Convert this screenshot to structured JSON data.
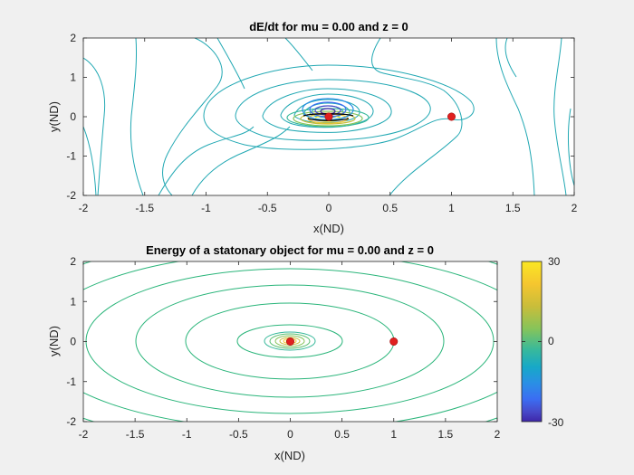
{
  "chart_data": [
    {
      "type": "contour",
      "title": "dE/dt for mu = 0.00 and z = 0",
      "xlabel": "x(ND)",
      "ylabel": "y(ND)",
      "xlim": [
        -2,
        2
      ],
      "ylim": [
        -2,
        2
      ],
      "x_ticks": [
        "-2",
        "-1.5",
        "-1",
        "-0.5",
        "0",
        "0.5",
        "1",
        "1.5",
        "2"
      ],
      "y_ticks": [
        "-2",
        "-1",
        "0",
        "1",
        "2"
      ],
      "markers": [
        {
          "x": 0,
          "y": 0,
          "color": "#e02020"
        },
        {
          "x": 1,
          "y": 0,
          "color": "#e02020"
        }
      ],
      "line_color": "#21a8b3"
    },
    {
      "type": "contour",
      "title": "Energy of a statonary object for mu = 0.00 and z = 0",
      "xlabel": "x(ND)",
      "ylabel": "y(ND)",
      "xlim": [
        -2,
        2
      ],
      "ylim": [
        -2,
        2
      ],
      "x_ticks": [
        "-2",
        "-1.5",
        "-1",
        "-0.5",
        "0",
        "0.5",
        "1",
        "1.5",
        "2"
      ],
      "y_ticks": [
        "-2",
        "-1",
        "0",
        "1",
        "2"
      ],
      "markers": [
        {
          "x": 0,
          "y": 0,
          "color": "#e02020"
        },
        {
          "x": 1,
          "y": 0,
          "color": "#e02020"
        }
      ],
      "line_color": "#2ab57a"
    }
  ],
  "colorbar": {
    "min": -30,
    "max": 30,
    "tick_labels": [
      "30",
      "0",
      "-30"
    ],
    "colors": [
      "#fae723",
      "#f5c62f",
      "#c9bd3a",
      "#86c45a",
      "#38b99b",
      "#17a8c8",
      "#2a8fe5",
      "#3b6df2",
      "#4748c8",
      "#3e26a8"
    ]
  }
}
